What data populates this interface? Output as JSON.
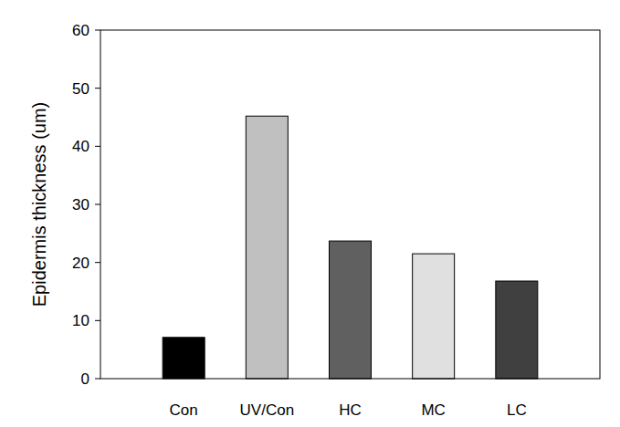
{
  "chart_data": {
    "type": "bar",
    "y_label": "Epidermis thickness (um)",
    "categories": [
      "Con",
      "UV/Con",
      "HC",
      "MC",
      "LC"
    ],
    "values": [
      7.1,
      45.2,
      23.7,
      21.5,
      16.8
    ],
    "colors": [
      "#000000",
      "#c0c0c0",
      "#606060",
      "#e0e0e0",
      "#404040"
    ],
    "ylim": [
      0,
      60
    ],
    "yticks": [
      0,
      10,
      20,
      30,
      40,
      50,
      60
    ],
    "grid": false
  }
}
